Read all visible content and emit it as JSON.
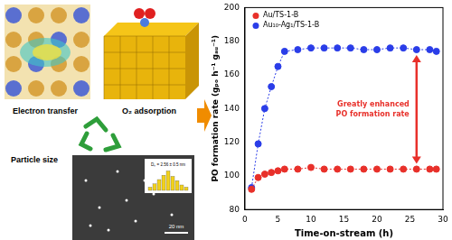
{
  "chart_data": {
    "type": "line",
    "x_label": "Time-on-stream (h)",
    "y_label": "PO formation rate (gₚₒ h⁻¹ gₐᵤ⁻¹)",
    "x": [
      1,
      2,
      3,
      4,
      5,
      6,
      8,
      10,
      12,
      14,
      16,
      18,
      20,
      22,
      24,
      26,
      28,
      29
    ],
    "xlim": [
      0,
      30
    ],
    "xticks": [
      0,
      5,
      10,
      15,
      20,
      25,
      30
    ],
    "ylim": [
      80,
      200
    ],
    "yticks": [
      80,
      100,
      120,
      140,
      160,
      180,
      200
    ],
    "grid": false,
    "legend": "upper left",
    "marker": "circle",
    "line_style": "dotted",
    "annotation": [
      "Greatly enhanced",
      "PO formation rate"
    ],
    "series": [
      {
        "name": "Au/TS-1-B",
        "color": "#e8302a",
        "values": [
          92,
          99,
          101,
          102,
          103,
          104,
          104,
          105,
          104,
          104,
          104,
          104,
          104,
          104,
          104,
          104,
          104,
          104
        ]
      },
      {
        "name": "Au₁₀-Ag₁/TS-1-B",
        "color": "#2a3de8",
        "values": [
          93,
          119,
          140,
          153,
          165,
          174,
          175,
          176,
          176,
          176,
          176,
          175,
          175,
          176,
          176,
          175,
          175,
          174
        ]
      }
    ]
  },
  "panel": {
    "labels": [
      "Electron transfer",
      "O₂ adsorption",
      "Particle size"
    ],
    "inset_text": "Dₙ = 2.56 ± 0.5 nm",
    "scale_bar": "20 nm"
  }
}
